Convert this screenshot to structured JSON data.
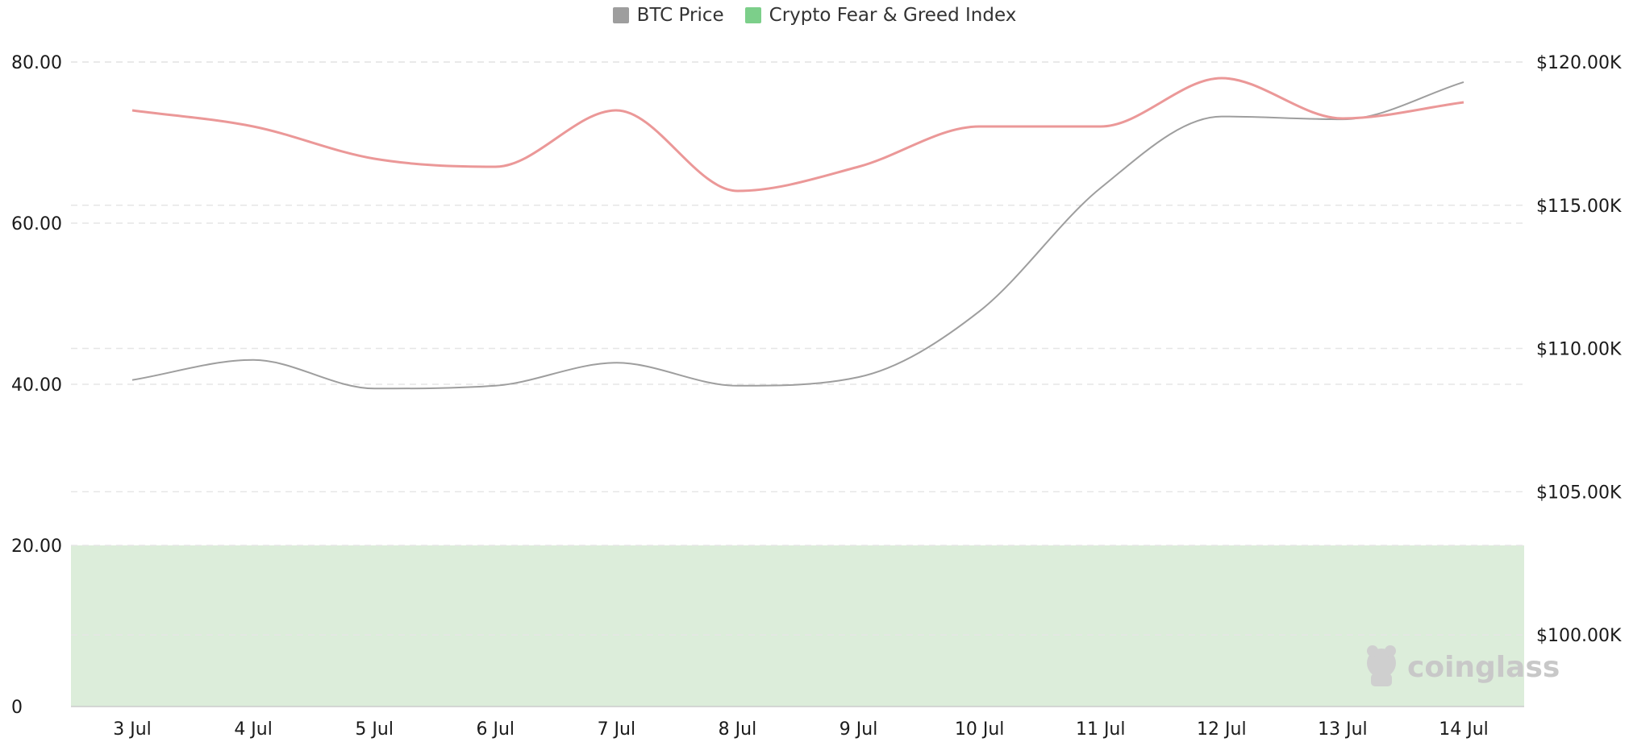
{
  "chart_data": {
    "type": "line",
    "title": "",
    "categories": [
      "3 Jul",
      "4 Jul",
      "5 Jul",
      "6 Jul",
      "7 Jul",
      "8 Jul",
      "9 Jul",
      "10 Jul",
      "11 Jul",
      "12 Jul",
      "13 Jul",
      "14 Jul"
    ],
    "series": [
      {
        "name": "BTC Price",
        "axis": "right",
        "color": "#9e9e9e",
        "values": [
          108900,
          109600,
          108600,
          108700,
          109500,
          108700,
          109000,
          111300,
          115600,
          118100,
          118000,
          119300
        ]
      },
      {
        "name": "Crypto Fear & Greed Index",
        "axis": "left",
        "color": "#eb9898",
        "legend_color": "#7ccf8a",
        "values": [
          74,
          72,
          68,
          67,
          74,
          64,
          67,
          72,
          72,
          78,
          73,
          75
        ]
      }
    ],
    "y_left": {
      "ylim": [
        0,
        80
      ],
      "ticks": [
        0,
        20,
        40,
        60,
        80
      ],
      "tick_labels": [
        "0",
        "20.00",
        "40.00",
        "60.00",
        "80.00"
      ]
    },
    "y_right": {
      "ylim": [
        97500,
        120000
      ],
      "ticks": [
        100000,
        105000,
        110000,
        115000,
        120000
      ],
      "tick_labels": [
        "$100.00K",
        "$105.00K",
        "$110.00K",
        "$115.00K",
        "$120.00K"
      ]
    },
    "shaded_band": {
      "from": 0,
      "to": 20,
      "color": "#dcedda"
    },
    "grid": true,
    "legend_position": "top-center",
    "watermark": "coinglass"
  }
}
